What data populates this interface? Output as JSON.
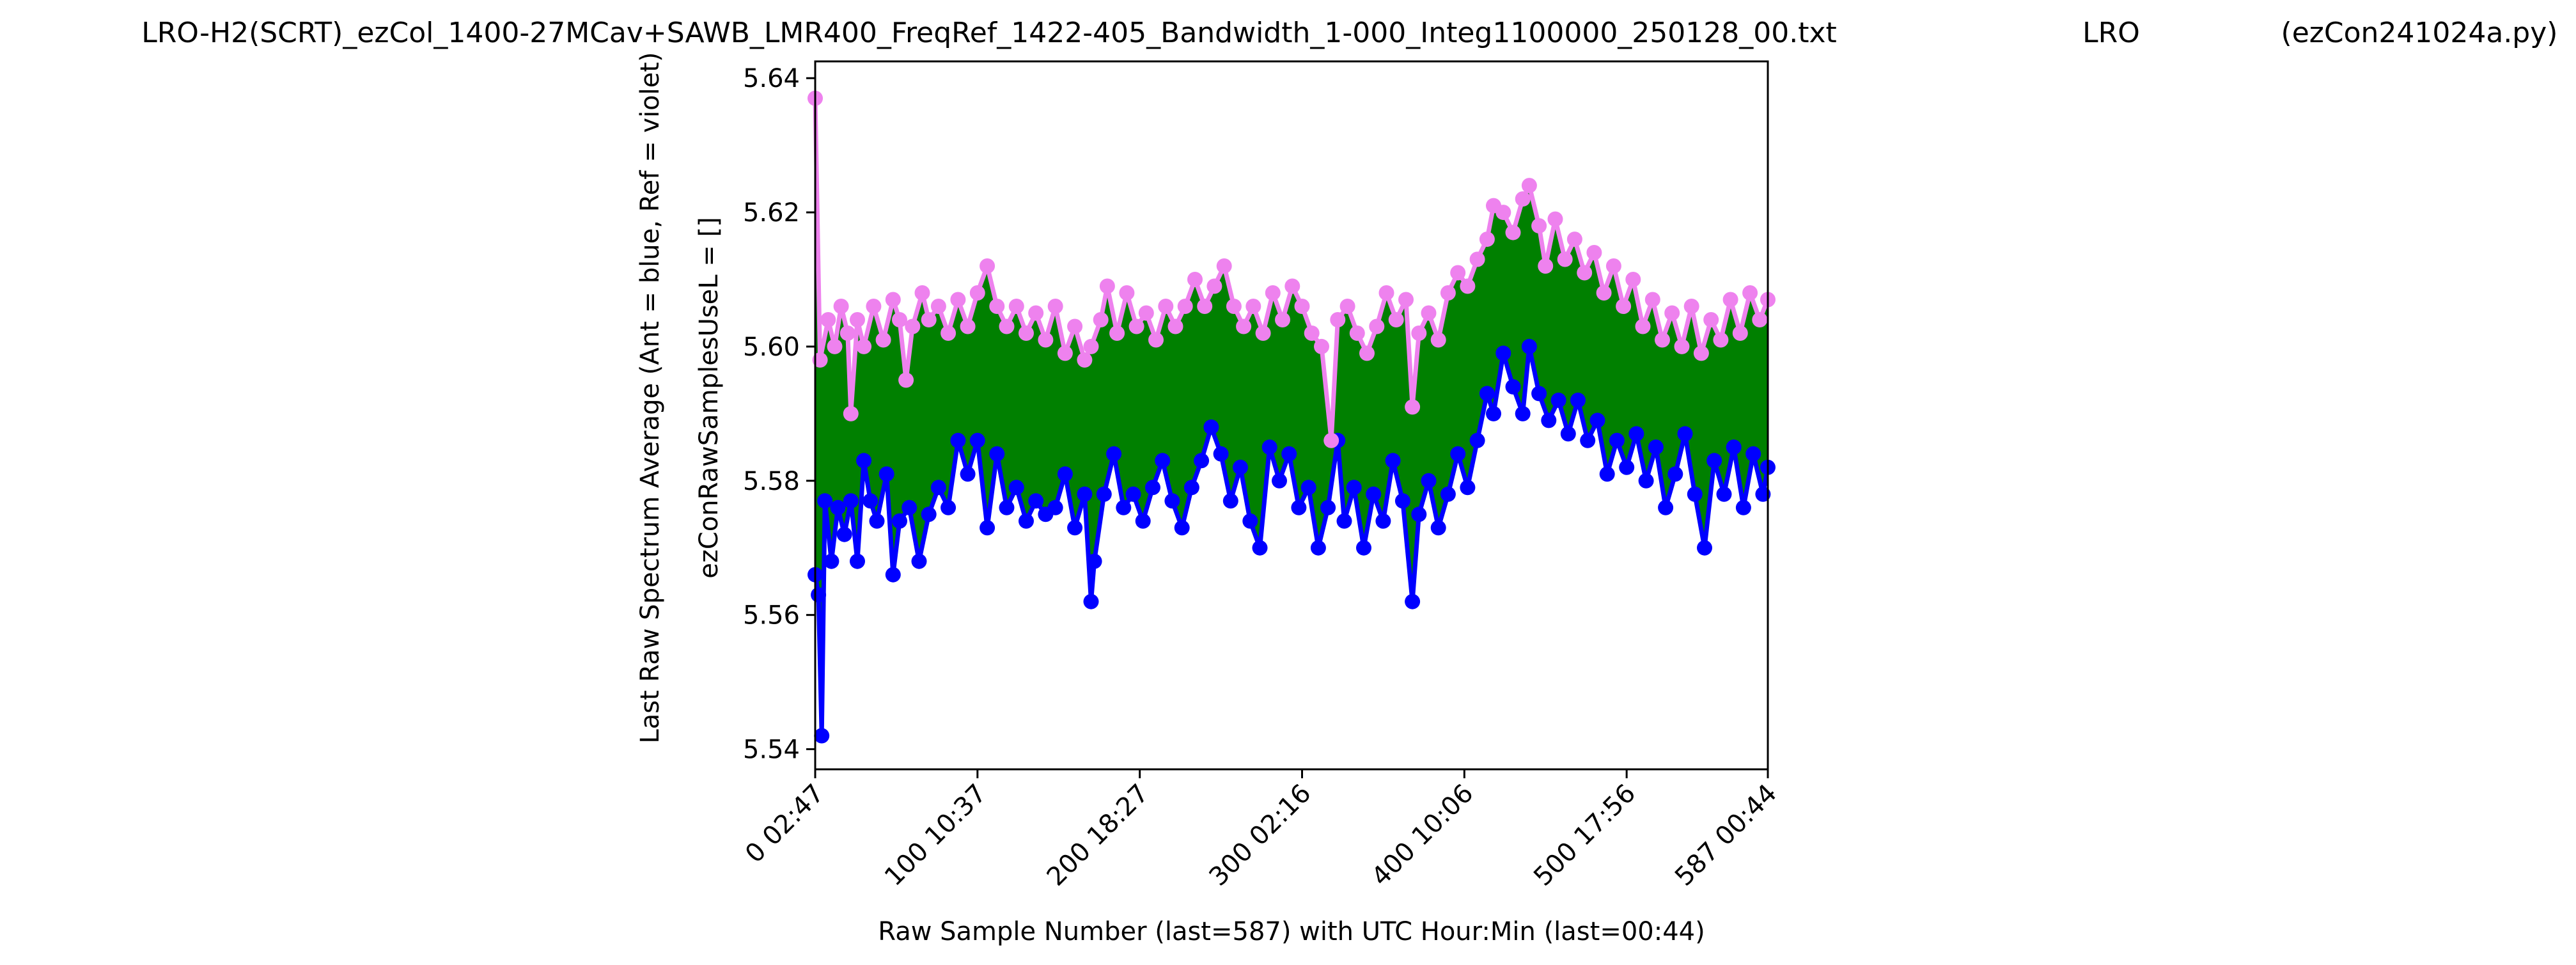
{
  "figure": {
    "title_left": "LRO-H2(SCRT)_ezCol_1400-27MCav+SAWB_LMR400_FreqRef_1422-405_Bandwidth_1-000_Integ1100000_250128_00.txt",
    "title_center": "LRO",
    "title_right": "(ezCon241024a.py)"
  },
  "chart_data": {
    "type": "line",
    "xlabel": "Raw Sample Number (last=587) with UTC Hour:Min (last=00:44)",
    "ylabel_line1": "Last Raw Spectrum Average   (Ant = blue, Ref = violet)",
    "ylabel_line2": "ezConRawSamplesUseL = []",
    "xlim": [
      0,
      587
    ],
    "ylim": [
      5.537,
      5.6425
    ],
    "x_ticks": [
      {
        "value": 0,
        "label": "0  02:47"
      },
      {
        "value": 100,
        "label": "100  10:37"
      },
      {
        "value": 200,
        "label": "200  18:27"
      },
      {
        "value": 300,
        "label": "300  02:16"
      },
      {
        "value": 400,
        "label": "400  10:06"
      },
      {
        "value": 500,
        "label": "500  17:56"
      },
      {
        "value": 587,
        "label": "587  00:44"
      }
    ],
    "y_ticks": [
      5.54,
      5.56,
      5.58,
      5.6,
      5.62,
      5.64
    ],
    "y_tick_labels": [
      "5.54",
      "5.56",
      "5.58",
      "5.60",
      "5.62",
      "5.64"
    ],
    "grid": false,
    "fill_between_color": "#008000",
    "series": [
      {
        "color": "#ee82ee",
        "points": [
          [
            0,
            5.637
          ],
          [
            3,
            5.598
          ],
          [
            8,
            5.604
          ],
          [
            12,
            5.6
          ],
          [
            16,
            5.606
          ],
          [
            20,
            5.602
          ],
          [
            22,
            5.59
          ],
          [
            26,
            5.604
          ],
          [
            30,
            5.6
          ],
          [
            36,
            5.606
          ],
          [
            42,
            5.601
          ],
          [
            48,
            5.607
          ],
          [
            52,
            5.604
          ],
          [
            56,
            5.595
          ],
          [
            60,
            5.603
          ],
          [
            66,
            5.608
          ],
          [
            70,
            5.604
          ],
          [
            76,
            5.606
          ],
          [
            82,
            5.602
          ],
          [
            88,
            5.607
          ],
          [
            94,
            5.603
          ],
          [
            100,
            5.608
          ],
          [
            106,
            5.612
          ],
          [
            112,
            5.606
          ],
          [
            118,
            5.603
          ],
          [
            124,
            5.606
          ],
          [
            130,
            5.602
          ],
          [
            136,
            5.605
          ],
          [
            142,
            5.601
          ],
          [
            148,
            5.606
          ],
          [
            154,
            5.599
          ],
          [
            160,
            5.603
          ],
          [
            166,
            5.598
          ],
          [
            170,
            5.6
          ],
          [
            176,
            5.604
          ],
          [
            180,
            5.609
          ],
          [
            186,
            5.602
          ],
          [
            192,
            5.608
          ],
          [
            198,
            5.603
          ],
          [
            204,
            5.605
          ],
          [
            210,
            5.601
          ],
          [
            216,
            5.606
          ],
          [
            222,
            5.603
          ],
          [
            228,
            5.606
          ],
          [
            234,
            5.61
          ],
          [
            240,
            5.606
          ],
          [
            246,
            5.609
          ],
          [
            252,
            5.612
          ],
          [
            258,
            5.606
          ],
          [
            264,
            5.603
          ],
          [
            270,
            5.606
          ],
          [
            276,
            5.602
          ],
          [
            282,
            5.608
          ],
          [
            288,
            5.604
          ],
          [
            294,
            5.609
          ],
          [
            300,
            5.606
          ],
          [
            306,
            5.602
          ],
          [
            312,
            5.6
          ],
          [
            318,
            5.586
          ],
          [
            322,
            5.604
          ],
          [
            328,
            5.606
          ],
          [
            334,
            5.602
          ],
          [
            340,
            5.599
          ],
          [
            346,
            5.603
          ],
          [
            352,
            5.608
          ],
          [
            358,
            5.604
          ],
          [
            364,
            5.607
          ],
          [
            368,
            5.591
          ],
          [
            372,
            5.602
          ],
          [
            378,
            5.605
          ],
          [
            384,
            5.601
          ],
          [
            390,
            5.608
          ],
          [
            396,
            5.611
          ],
          [
            402,
            5.609
          ],
          [
            408,
            5.613
          ],
          [
            414,
            5.616
          ],
          [
            418,
            5.621
          ],
          [
            424,
            5.62
          ],
          [
            430,
            5.617
          ],
          [
            436,
            5.622
          ],
          [
            440,
            5.624
          ],
          [
            446,
            5.618
          ],
          [
            450,
            5.612
          ],
          [
            456,
            5.619
          ],
          [
            462,
            5.613
          ],
          [
            468,
            5.616
          ],
          [
            474,
            5.611
          ],
          [
            480,
            5.614
          ],
          [
            486,
            5.608
          ],
          [
            492,
            5.612
          ],
          [
            498,
            5.606
          ],
          [
            504,
            5.61
          ],
          [
            510,
            5.603
          ],
          [
            516,
            5.607
          ],
          [
            522,
            5.601
          ],
          [
            528,
            5.605
          ],
          [
            534,
            5.6
          ],
          [
            540,
            5.606
          ],
          [
            546,
            5.599
          ],
          [
            552,
            5.604
          ],
          [
            558,
            5.601
          ],
          [
            564,
            5.607
          ],
          [
            570,
            5.602
          ],
          [
            576,
            5.608
          ],
          [
            582,
            5.604
          ],
          [
            587,
            5.607
          ]
        ]
      },
      {
        "color": "#0000ff",
        "points": [
          [
            0,
            5.566
          ],
          [
            2,
            5.563
          ],
          [
            4,
            5.542
          ],
          [
            6,
            5.577
          ],
          [
            10,
            5.568
          ],
          [
            14,
            5.576
          ],
          [
            18,
            5.572
          ],
          [
            22,
            5.577
          ],
          [
            26,
            5.568
          ],
          [
            30,
            5.583
          ],
          [
            34,
            5.577
          ],
          [
            38,
            5.574
          ],
          [
            44,
            5.581
          ],
          [
            48,
            5.566
          ],
          [
            52,
            5.574
          ],
          [
            58,
            5.576
          ],
          [
            64,
            5.568
          ],
          [
            70,
            5.575
          ],
          [
            76,
            5.579
          ],
          [
            82,
            5.576
          ],
          [
            88,
            5.586
          ],
          [
            94,
            5.581
          ],
          [
            100,
            5.586
          ],
          [
            106,
            5.573
          ],
          [
            112,
            5.584
          ],
          [
            118,
            5.576
          ],
          [
            124,
            5.579
          ],
          [
            130,
            5.574
          ],
          [
            136,
            5.577
          ],
          [
            142,
            5.575
          ],
          [
            148,
            5.576
          ],
          [
            154,
            5.581
          ],
          [
            160,
            5.573
          ],
          [
            166,
            5.578
          ],
          [
            170,
            5.562
          ],
          [
            172,
            5.568
          ],
          [
            178,
            5.578
          ],
          [
            184,
            5.584
          ],
          [
            190,
            5.576
          ],
          [
            196,
            5.578
          ],
          [
            202,
            5.574
          ],
          [
            208,
            5.579
          ],
          [
            214,
            5.583
          ],
          [
            220,
            5.577
          ],
          [
            226,
            5.573
          ],
          [
            232,
            5.579
          ],
          [
            238,
            5.583
          ],
          [
            244,
            5.588
          ],
          [
            250,
            5.584
          ],
          [
            256,
            5.577
          ],
          [
            262,
            5.582
          ],
          [
            268,
            5.574
          ],
          [
            274,
            5.57
          ],
          [
            280,
            5.585
          ],
          [
            286,
            5.58
          ],
          [
            292,
            5.584
          ],
          [
            298,
            5.576
          ],
          [
            304,
            5.579
          ],
          [
            310,
            5.57
          ],
          [
            316,
            5.576
          ],
          [
            322,
            5.586
          ],
          [
            326,
            5.574
          ],
          [
            332,
            5.579
          ],
          [
            338,
            5.57
          ],
          [
            344,
            5.578
          ],
          [
            350,
            5.574
          ],
          [
            356,
            5.583
          ],
          [
            362,
            5.577
          ],
          [
            368,
            5.562
          ],
          [
            372,
            5.575
          ],
          [
            378,
            5.58
          ],
          [
            384,
            5.573
          ],
          [
            390,
            5.578
          ],
          [
            396,
            5.584
          ],
          [
            402,
            5.579
          ],
          [
            408,
            5.586
          ],
          [
            414,
            5.593
          ],
          [
            418,
            5.59
          ],
          [
            424,
            5.599
          ],
          [
            430,
            5.594
          ],
          [
            436,
            5.59
          ],
          [
            440,
            5.6
          ],
          [
            446,
            5.593
          ],
          [
            452,
            5.589
          ],
          [
            458,
            5.592
          ],
          [
            464,
            5.587
          ],
          [
            470,
            5.592
          ],
          [
            476,
            5.586
          ],
          [
            482,
            5.589
          ],
          [
            488,
            5.581
          ],
          [
            494,
            5.586
          ],
          [
            500,
            5.582
          ],
          [
            506,
            5.587
          ],
          [
            512,
            5.58
          ],
          [
            518,
            5.585
          ],
          [
            524,
            5.576
          ],
          [
            530,
            5.581
          ],
          [
            536,
            5.587
          ],
          [
            542,
            5.578
          ],
          [
            548,
            5.57
          ],
          [
            554,
            5.583
          ],
          [
            560,
            5.578
          ],
          [
            566,
            5.585
          ],
          [
            572,
            5.576
          ],
          [
            578,
            5.584
          ],
          [
            584,
            5.578
          ],
          [
            587,
            5.582
          ]
        ]
      }
    ]
  }
}
